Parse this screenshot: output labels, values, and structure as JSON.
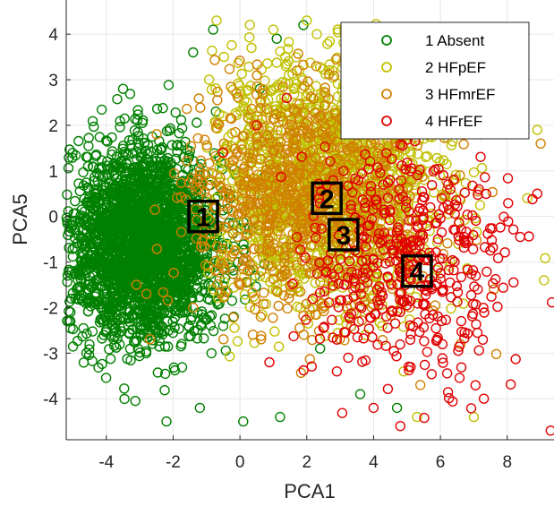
{
  "chart_data": {
    "type": "scatter",
    "title": "",
    "xlabel": "PCA1",
    "ylabel": "PCA5",
    "xlim": [
      -5.2,
      9.4
    ],
    "ylim": [
      -4.9,
      4.75
    ],
    "xticks": [
      -4,
      -2,
      0,
      2,
      4,
      6,
      8
    ],
    "yticks": [
      -4,
      -3,
      -2,
      -1,
      0,
      1,
      2,
      3,
      4
    ],
    "xtick_labels": [
      "-4",
      "-2",
      "0",
      "2",
      "4",
      "6",
      "8"
    ],
    "ytick_labels": [
      "-4",
      "-3",
      "-2",
      "-1",
      "0",
      "1",
      "2",
      "3",
      "4"
    ],
    "grid": true,
    "legend_position": "top-right",
    "marker": "open-circle",
    "series": [
      {
        "name": "1 Absent",
        "color": "#008000",
        "cluster": {
          "center": [
            -2.9,
            -0.6
          ],
          "spread": [
            1.15,
            1.05
          ],
          "x_range": [
            -5.2,
            2.6
          ],
          "y_range": [
            -4.6,
            4.3
          ]
        },
        "outliers": [
          [
            -4.2,
            0.9
          ],
          [
            -3.5,
            2.8
          ],
          [
            -1.4,
            3.6
          ],
          [
            -0.8,
            4.1
          ],
          [
            1.9,
            4.2
          ],
          [
            1.1,
            3.9
          ],
          [
            0.6,
            2.8
          ],
          [
            -1.2,
            -4.2
          ],
          [
            0.1,
            -4.5
          ],
          [
            1.2,
            -4.4
          ],
          [
            3.6,
            -3.9
          ],
          [
            4.7,
            -4.2
          ],
          [
            -2.2,
            -4.5
          ],
          [
            2.4,
            -2.9
          ]
        ]
      },
      {
        "name": "2 HFpEF",
        "color": "#c0c000",
        "cluster": {
          "center": [
            2.6,
            0.9
          ],
          "spread": [
            1.75,
            1.35
          ],
          "x_range": [
            -1.0,
            9.4
          ],
          "y_range": [
            -4.5,
            4.3
          ]
        },
        "outliers": [
          [
            -0.7,
            4.3
          ],
          [
            1.0,
            4.1
          ],
          [
            2.0,
            4.3
          ],
          [
            6.4,
            2.5
          ],
          [
            8.9,
            1.9
          ],
          [
            9.1,
            -1.4
          ],
          [
            7.0,
            -4.4
          ],
          [
            5.3,
            -4.4
          ],
          [
            4.9,
            -3.4
          ],
          [
            8.6,
            0.4
          ]
        ]
      },
      {
        "name": "3 HFmrEF",
        "color": "#d08000",
        "cluster": {
          "center": [
            2.0,
            0.4
          ],
          "spread": [
            1.8,
            1.3
          ],
          "x_range": [
            -2.8,
            9.2
          ],
          "y_range": [
            -4.0,
            3.6
          ]
        },
        "outliers": [
          [
            -3.1,
            -1.5
          ],
          [
            -2.8,
            -1.7
          ],
          [
            -1.4,
            -2.0
          ],
          [
            7.2,
            1.8
          ],
          [
            9.0,
            1.6
          ],
          [
            6.6,
            -2.8
          ],
          [
            7.6,
            -1.6
          ],
          [
            5.4,
            -3.7
          ]
        ]
      },
      {
        "name": "4 HFrEF",
        "color": "#e00000",
        "cluster": {
          "center": [
            5.0,
            -1.0
          ],
          "spread": [
            1.55,
            1.3
          ],
          "x_range": [
            -0.6,
            9.4
          ],
          "y_range": [
            -4.8,
            3.7
          ]
        },
        "outliers": [
          [
            -0.5,
            1.4
          ],
          [
            0.5,
            2.0
          ],
          [
            1.4,
            2.6
          ],
          [
            6.4,
            2.1
          ],
          [
            7.8,
            2.4
          ],
          [
            8.9,
            0.5
          ],
          [
            9.3,
            -4.7
          ],
          [
            7.3,
            -4.0
          ],
          [
            4.0,
            -4.2
          ],
          [
            2.9,
            -3.4
          ],
          [
            4.8,
            -4.6
          ]
        ]
      }
    ],
    "centroids": [
      {
        "label": "1",
        "x": -1.1,
        "y": 0.0
      },
      {
        "label": "2",
        "x": 2.6,
        "y": 0.4
      },
      {
        "label": "3",
        "x": 3.1,
        "y": -0.4
      },
      {
        "label": "4",
        "x": 5.3,
        "y": -1.2
      }
    ]
  }
}
